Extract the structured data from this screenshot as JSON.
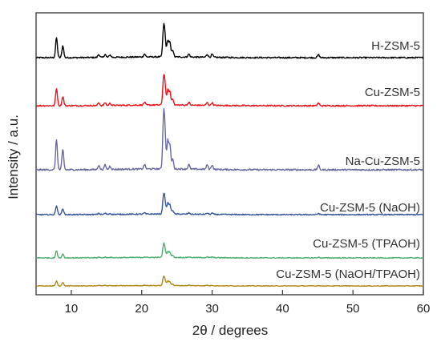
{
  "chart_data": {
    "type": "line",
    "title": "",
    "xlabel": "2θ / degrees",
    "ylabel": "Intensity / a.u.",
    "xlim": [
      5,
      60
    ],
    "xticks": [
      10,
      20,
      30,
      40,
      50,
      60
    ],
    "y_axis_values_shown": false,
    "grid": false,
    "legend": "none (labels placed beside each curve)",
    "peak_positions_2theta": [
      7.9,
      8.8,
      13.9,
      14.8,
      15.5,
      20.4,
      23.1,
      23.3,
      23.7,
      24.0,
      24.4,
      26.7,
      29.3,
      30.0,
      45.1
    ],
    "series": [
      {
        "name": "H-ZSM-5",
        "color": "#000000",
        "peak_heights": [
          1.0,
          0.6,
          0.15,
          0.15,
          0.12,
          0.15,
          1.3,
          0.9,
          0.8,
          0.7,
          0.35,
          0.15,
          0.15,
          0.15,
          0.15
        ]
      },
      {
        "name": "Cu-ZSM-5",
        "color": "#e8141c",
        "peak_heights": [
          0.95,
          0.5,
          0.15,
          0.15,
          0.12,
          0.15,
          1.3,
          0.95,
          0.8,
          0.7,
          0.35,
          0.15,
          0.15,
          0.15,
          0.15
        ]
      },
      {
        "name": "Na-Cu-ZSM-5",
        "color": "#6a6aa0",
        "peak_heights": [
          1.35,
          0.9,
          0.2,
          0.2,
          0.15,
          0.2,
          2.1,
          1.45,
          1.25,
          1.05,
          0.45,
          0.2,
          0.2,
          0.2,
          0.2
        ]
      },
      {
        "name": "Cu-ZSM-5 (NaOH)",
        "color": "#3a569a",
        "peak_heights": [
          0.6,
          0.4,
          0.08,
          0.08,
          0.06,
          0.08,
          1.1,
          0.75,
          0.7,
          0.6,
          0.25,
          0.08,
          0.08,
          0.08,
          0.08
        ]
      },
      {
        "name": "Cu-ZSM-5 (TPAOH)",
        "color": "#4fae72",
        "peak_heights": [
          0.55,
          0.3,
          0.05,
          0.05,
          0.04,
          0.05,
          0.9,
          0.55,
          0.45,
          0.4,
          0.15,
          0.05,
          0.05,
          0.05,
          0.05
        ]
      },
      {
        "name": "Cu-ZSM-5 (NaOH/TPAOH)",
        "color": "#b08a1c",
        "peak_heights": [
          0.5,
          0.35,
          0.05,
          0.05,
          0.04,
          0.05,
          0.8,
          0.5,
          0.45,
          0.4,
          0.15,
          0.05,
          0.05,
          0.05,
          0.05
        ]
      }
    ]
  }
}
